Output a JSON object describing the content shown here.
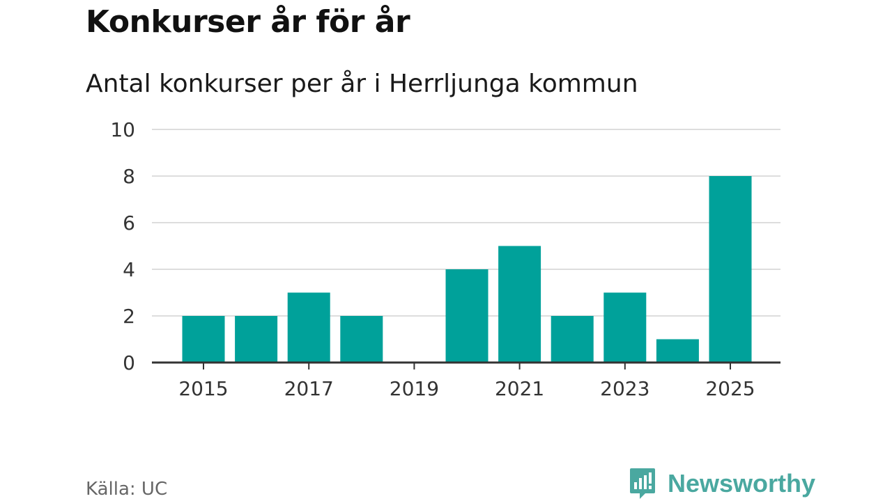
{
  "title": "Konkurser år för år",
  "subtitle": "Antal konkurser per år i Herrljunga kommun",
  "source": "Källa: UC",
  "brand": {
    "name": "Newsworthy",
    "icon": "newsworthy-logo-icon",
    "color": "#4aa8a0"
  },
  "colors": {
    "bar": "#00a19a",
    "grid": "#dddddd",
    "axis": "#333333",
    "tick_text": "#333333"
  },
  "chart_data": {
    "type": "bar",
    "categories": [
      "2015",
      "2016",
      "2017",
      "2018",
      "2019",
      "2020",
      "2021",
      "2022",
      "2023",
      "2024",
      "2025"
    ],
    "values": [
      2,
      2,
      3,
      2,
      0,
      4,
      5,
      2,
      3,
      1,
      8
    ],
    "x_tick_labels": [
      "2015",
      "2017",
      "2019",
      "2021",
      "2023",
      "2025"
    ],
    "y_ticks": [
      0,
      2,
      4,
      6,
      8,
      10
    ],
    "ylim": [
      0,
      10
    ],
    "grid": true,
    "legend": "none"
  }
}
